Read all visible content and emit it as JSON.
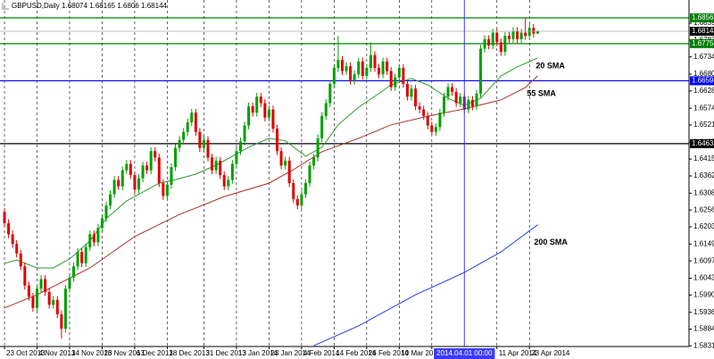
{
  "chart_data": {
    "type": "candlestick",
    "title": "GBPUSD,Daily",
    "open": [
      1.625,
      1.6215,
      1.618,
      1.615,
      1.612,
      1.608,
      1.602,
      1.5985,
      1.595,
      1.601,
      1.604,
      1.6,
      1.596,
      1.5975,
      1.593,
      1.5885,
      1.601,
      1.6045,
      1.608,
      1.6125,
      1.609,
      1.614,
      1.618,
      1.6155,
      1.62,
      1.623,
      1.627,
      1.6305,
      1.635,
      1.633,
      1.638,
      1.64,
      1.6365,
      1.632,
      1.6355,
      1.6395,
      1.638,
      1.644,
      1.642,
      1.634,
      1.63,
      1.6335,
      1.639,
      1.645,
      1.6475,
      1.65,
      1.653,
      1.656,
      1.65,
      1.645,
      1.6475,
      1.642,
      1.638,
      1.641,
      1.6365,
      1.633,
      1.635,
      1.64,
      1.644,
      1.647,
      1.652,
      1.658,
      1.656,
      1.661,
      1.659,
      1.6545,
      1.657,
      1.651,
      1.644,
      1.6395,
      1.641,
      1.634,
      1.629,
      1.627,
      1.6305,
      1.634,
      1.6395,
      1.642,
      1.648,
      1.655,
      1.659,
      1.665,
      1.67,
      1.6725,
      1.669,
      1.6705,
      1.666,
      1.668,
      1.672,
      1.6675,
      1.67,
      1.674,
      1.67,
      1.668,
      1.672,
      1.669,
      1.664,
      1.667,
      1.67,
      1.665,
      1.661,
      1.6635,
      1.658,
      1.657,
      1.655,
      1.652,
      1.65,
      1.6515,
      1.656,
      1.661,
      1.664,
      1.6625,
      1.659,
      1.661,
      1.657,
      1.66,
      1.658,
      1.662,
      1.676,
      1.679,
      1.677,
      1.681,
      1.678,
      1.675,
      1.68,
      1.679,
      1.6815,
      1.679,
      1.681,
      1.68,
      1.6825,
      1.68074
    ],
    "high": [
      1.6262,
      1.6227,
      1.6192,
      1.6162,
      1.6132,
      1.6092,
      1.6032,
      1.5997,
      1.6022,
      1.6052,
      1.6052,
      1.6012,
      1.5987,
      1.5987,
      1.5942,
      1.6022,
      1.6057,
      1.6092,
      1.6137,
      1.6137,
      1.6152,
      1.6192,
      1.6192,
      1.6212,
      1.6242,
      1.6282,
      1.6317,
      1.6362,
      1.6362,
      1.6392,
      1.6412,
      1.6412,
      1.6377,
      1.6367,
      1.6407,
      1.6407,
      1.6452,
      1.6452,
      1.6432,
      1.6352,
      1.6347,
      1.6402,
      1.6462,
      1.6487,
      1.6512,
      1.6542,
      1.6572,
      1.6572,
      1.6512,
      1.6487,
      1.6487,
      1.6432,
      1.6422,
      1.6422,
      1.6377,
      1.6362,
      1.6412,
      1.6452,
      1.6482,
      1.6532,
      1.6592,
      1.6592,
      1.6622,
      1.6622,
      1.6602,
      1.6582,
      1.6582,
      1.6522,
      1.6452,
      1.6422,
      1.6422,
      1.6352,
      1.6302,
      1.6317,
      1.6352,
      1.6407,
      1.6432,
      1.6492,
      1.6562,
      1.6602,
      1.6662,
      1.6712,
      1.68,
      1.6737,
      1.6717,
      1.6717,
      1.6692,
      1.6732,
      1.6732,
      1.6712,
      1.678,
      1.6752,
      1.6712,
      1.6732,
      1.6732,
      1.6702,
      1.6682,
      1.6712,
      1.6712,
      1.6662,
      1.6647,
      1.6647,
      1.6592,
      1.6582,
      1.6562,
      1.6532,
      1.6527,
      1.6572,
      1.6622,
      1.6652,
      1.6652,
      1.6637,
      1.6622,
      1.6622,
      1.6612,
      1.6612,
      1.6632,
      1.6772,
      1.6802,
      1.6802,
      1.6822,
      1.6822,
      1.6792,
      1.6812,
      1.6812,
      1.6827,
      1.6827,
      1.6822,
      1.6856,
      1.6837,
      1.6837,
      1.68165
    ],
    "low": [
      1.6203,
      1.6168,
      1.6138,
      1.6108,
      1.6068,
      1.6008,
      1.5973,
      1.5938,
      1.5938,
      1.5998,
      1.5988,
      1.5948,
      1.5948,
      1.5918,
      1.5855,
      1.5873,
      1.5998,
      1.6033,
      1.6068,
      1.6078,
      1.6078,
      1.6128,
      1.6143,
      1.6143,
      1.6188,
      1.6218,
      1.6258,
      1.6293,
      1.6318,
      1.6318,
      1.6368,
      1.6353,
      1.6308,
      1.6308,
      1.6343,
      1.6368,
      1.6368,
      1.6408,
      1.6328,
      1.6288,
      1.6288,
      1.6323,
      1.6378,
      1.6438,
      1.6463,
      1.6488,
      1.6518,
      1.6488,
      1.6438,
      1.6438,
      1.6408,
      1.6368,
      1.6368,
      1.6353,
      1.6318,
      1.6318,
      1.6338,
      1.6388,
      1.6428,
      1.6458,
      1.6508,
      1.6548,
      1.6548,
      1.6578,
      1.6533,
      1.6533,
      1.6498,
      1.6428,
      1.6383,
      1.6383,
      1.6328,
      1.6278,
      1.6258,
      1.6258,
      1.6293,
      1.6328,
      1.6383,
      1.6408,
      1.6468,
      1.6538,
      1.6578,
      1.6638,
      1.6688,
      1.6678,
      1.6678,
      1.6648,
      1.6648,
      1.6668,
      1.6663,
      1.6663,
      1.6688,
      1.6688,
      1.6668,
      1.6668,
      1.6678,
      1.6628,
      1.6628,
      1.6658,
      1.6638,
      1.6598,
      1.6598,
      1.6568,
      1.6558,
      1.6538,
      1.6508,
      1.6488,
      1.6488,
      1.6503,
      1.6548,
      1.6598,
      1.6613,
      1.6578,
      1.6578,
      1.6558,
      1.6558,
      1.6568,
      1.6568,
      1.6608,
      1.6748,
      1.6758,
      1.6758,
      1.6768,
      1.6738,
      1.6738,
      1.6778,
      1.6778,
      1.6778,
      1.6778,
      1.6788,
      1.6788,
      1.6795,
      1.6806
    ],
    "close": [
      1.6215,
      1.618,
      1.615,
      1.612,
      1.608,
      1.602,
      1.5985,
      1.595,
      1.601,
      1.604,
      1.6,
      1.596,
      1.5975,
      1.593,
      1.5885,
      1.601,
      1.6045,
      1.608,
      1.6125,
      1.609,
      1.614,
      1.618,
      1.6155,
      1.62,
      1.623,
      1.627,
      1.6305,
      1.635,
      1.633,
      1.638,
      1.64,
      1.6365,
      1.632,
      1.6355,
      1.6395,
      1.638,
      1.644,
      1.642,
      1.634,
      1.63,
      1.6335,
      1.639,
      1.645,
      1.6475,
      1.65,
      1.653,
      1.656,
      1.65,
      1.645,
      1.6475,
      1.642,
      1.638,
      1.641,
      1.6365,
      1.633,
      1.635,
      1.64,
      1.644,
      1.647,
      1.652,
      1.658,
      1.656,
      1.661,
      1.659,
      1.6545,
      1.657,
      1.651,
      1.644,
      1.6395,
      1.641,
      1.634,
      1.629,
      1.627,
      1.6305,
      1.634,
      1.6395,
      1.642,
      1.648,
      1.655,
      1.659,
      1.665,
      1.67,
      1.6725,
      1.669,
      1.6705,
      1.666,
      1.668,
      1.672,
      1.6675,
      1.67,
      1.674,
      1.67,
      1.668,
      1.672,
      1.669,
      1.664,
      1.667,
      1.67,
      1.665,
      1.661,
      1.6635,
      1.658,
      1.657,
      1.655,
      1.652,
      1.65,
      1.6515,
      1.656,
      1.661,
      1.664,
      1.6625,
      1.659,
      1.661,
      1.657,
      1.66,
      1.658,
      1.662,
      1.676,
      1.679,
      1.677,
      1.681,
      1.678,
      1.675,
      1.68,
      1.679,
      1.6815,
      1.679,
      1.681,
      1.68,
      1.6825,
      1.6807,
      1.68144
    ],
    "up_color": "#00a000",
    "down_color": "#e00000",
    "series": [
      {
        "name": "20 SMA",
        "color": "#2f9a2f",
        "x": [
          0,
          3,
          8,
          12,
          16,
          21,
          25,
          30,
          34,
          38,
          43,
          47,
          52,
          56,
          60,
          65,
          69,
          74,
          78,
          82,
          87,
          91,
          95,
          100,
          104,
          109,
          113,
          117,
          122,
          126,
          131
        ],
        "values": [
          1.6089,
          1.61,
          1.6075,
          1.6075,
          1.6103,
          1.6159,
          1.6229,
          1.6284,
          1.6312,
          1.634,
          1.6354,
          1.6368,
          1.6396,
          1.6424,
          1.6452,
          1.648,
          1.6472,
          1.6424,
          1.6452,
          1.6522,
          1.6577,
          1.6611,
          1.6647,
          1.6667,
          1.6647,
          1.6605,
          1.6583,
          1.6605,
          1.6675,
          1.6703,
          1.6731
        ]
      },
      {
        "name": "55 SMA",
        "color": "#a8322a",
        "x": [
          0,
          8,
          21,
          32,
          43,
          54,
          65,
          71,
          78,
          87,
          95,
          104,
          113,
          122,
          128,
          131
        ],
        "values": [
          1.595,
          1.5991,
          1.6075,
          1.6173,
          1.6242,
          1.6298,
          1.634,
          1.6382,
          1.6438,
          1.648,
          1.6522,
          1.6549,
          1.6572,
          1.66,
          1.6639,
          1.6675
        ]
      },
      {
        "name": "200 SMA",
        "color": "#2040e0",
        "x": [
          76,
          87,
          101,
          113,
          122,
          131
        ],
        "values": [
          1.5832,
          1.5894,
          1.5991,
          1.6061,
          1.6125,
          1.621
        ]
      }
    ],
    "levels": [
      {
        "value": 1.68563,
        "color": "#008000"
      },
      {
        "value": 1.67758,
        "color": "#008000"
      },
      {
        "value": 1.66598,
        "color": "#0000ff"
      },
      {
        "value": 1.64633,
        "color": "#000000"
      }
    ],
    "crosshair": {
      "x": 113,
      "label": "2014.04.01 00:00",
      "color": "#3a3aff"
    },
    "xlim": [
      -1.1,
      168.2
    ],
    "ylim": [
      1.58296,
      1.69121
    ],
    "xticks": [
      {
        "value": 0,
        "label": "23 Oct 2013"
      },
      {
        "value": 8,
        "label": "4 Nov 2013"
      },
      {
        "value": 16,
        "label": "14 Nov 2013"
      },
      {
        "value": 24,
        "label": "26 Nov 2013"
      },
      {
        "value": 32,
        "label": "6 Dec 2013"
      },
      {
        "value": 40,
        "label": "18 Dec 2013"
      },
      {
        "value": 49,
        "label": "31 Dec 2013"
      },
      {
        "value": 57,
        "label": "13 Jan 2014"
      },
      {
        "value": 65,
        "label": "23 Jan 2014"
      },
      {
        "value": 73,
        "label": "4 Feb 2014"
      },
      {
        "value": 81,
        "label": "14 Feb 2014"
      },
      {
        "value": 89,
        "label": "26 Feb 2014"
      },
      {
        "value": 97,
        "label": "10 Mar 2014"
      },
      {
        "value": 105,
        "label": "20 Mar 2014"
      },
      {
        "value": 121,
        "label": "11 Apr 2014"
      },
      {
        "value": 129,
        "label": "23 Apr 2014"
      }
    ],
    "yticks": [
      1.68395,
      {
        "value": 1.6787,
        "label": "1.67870"
      },
      1.67345,
      1.66805,
      1.6628,
      1.6574,
      1.65215,
      1.64675,
      1.64151,
      1.63625,
      1.63085,
      {
        "value": 1.6256,
        "label": "1.62560"
      },
      1.62035,
      1.61495,
      {
        "value": 1.6097,
        "label": "1.60970"
      },
      {
        "value": 1.6043,
        "label": "1.60430"
      },
      1.59905,
      1.59365,
      1.5884,
      1.58315
    ],
    "grid": "x"
  }
}
